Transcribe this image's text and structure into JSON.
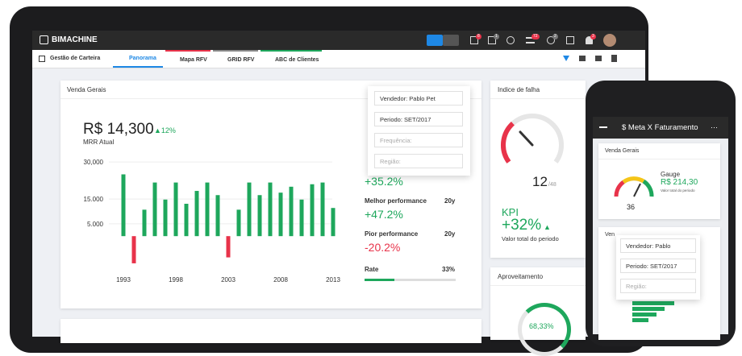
{
  "app": {
    "logo": "BIMACHINE",
    "badges": [
      "8",
      "1",
      "72",
      "2",
      "3"
    ]
  },
  "tabs": [
    "Gestão de Carteira",
    "Panorama",
    "Mapa RFV",
    "GRID RFV",
    "ABC de Clientes"
  ],
  "filters": [
    "Vendedor: Pablo Pet",
    "Periodo: SET/2017",
    "Frequência:",
    "Região:"
  ],
  "kpi_card": {
    "title": "Venda Gerais",
    "value": "R$ 14,300",
    "change": "▲12%",
    "caption": "MRR Atual"
  },
  "stats": [
    {
      "value": "+35.2%"
    },
    {
      "label": "Melhor performance",
      "period": "20y",
      "value": "+47.2%"
    },
    {
      "label": "Pior performance",
      "period": "20y",
      "value": "-20.2%"
    }
  ],
  "rate": {
    "label": "Rate",
    "value": 33,
    "value_label": "33%"
  },
  "chart_data": {
    "type": "bar",
    "categories": [
      "1993",
      null,
      null,
      null,
      null,
      "1998",
      null,
      null,
      null,
      null,
      "2003",
      null,
      null,
      null,
      null,
      "2008",
      null,
      null,
      null,
      null,
      "2013"
    ],
    "values": [
      25000,
      -11000,
      10700,
      21700,
      14800,
      21700,
      13100,
      18300,
      21700,
      16600,
      -8600,
      10700,
      21700,
      16600,
      21700,
      17600,
      20000,
      14800,
      21000,
      21700,
      11400
    ],
    "color": "#1ea75c",
    "negative_color": "#e8334a",
    "ylim": [
      -12000,
      32000
    ],
    "yticks": [
      {
        "value": 30000,
        "label": "30,000"
      },
      {
        "value": 15000,
        "label": "15.000"
      },
      {
        "value": 5000,
        "label": "5.000"
      }
    ],
    "grid": true
  },
  "gauge_card": {
    "title": "Indice de falha",
    "value": 12,
    "max": 48,
    "max_label": "/48",
    "kpi_label": "KPI",
    "kpi_value": "+32%",
    "kpi_arrow": "▲",
    "caption": "Valor total do periodo"
  },
  "aproveitamento": {
    "title": "Aproveitamento",
    "value": "68,33%"
  },
  "phone": {
    "title": "$ Meta X Faturamento",
    "card_title": "Venda Gerais",
    "gauge_title": "Gauge",
    "gauge_value": "R$ 214,30",
    "gauge_caption": "Valor total do periodo",
    "gauge_number": "36",
    "filters": [
      "Vendedor: Pablo",
      "Periodo: SET/2017",
      "Região:"
    ],
    "card2_title": "Ven"
  }
}
